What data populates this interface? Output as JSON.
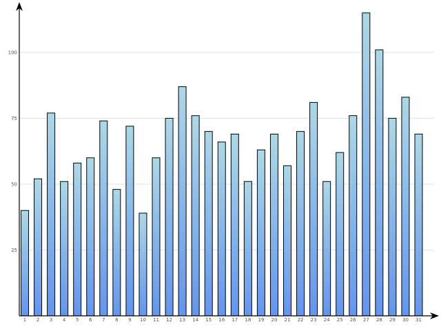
{
  "chart_data": {
    "type": "bar",
    "categories": [
      "1",
      "2",
      "3",
      "4",
      "5",
      "6",
      "7",
      "8",
      "9",
      "10",
      "11",
      "12",
      "13",
      "14",
      "15",
      "16",
      "17",
      "18",
      "19",
      "20",
      "21",
      "22",
      "23",
      "24",
      "25",
      "26",
      "27",
      "28",
      "29",
      "30",
      "31"
    ],
    "values": [
      40,
      52,
      77,
      51,
      58,
      60,
      74,
      48,
      72,
      39,
      60,
      75,
      87,
      76,
      70,
      66,
      69,
      51,
      63,
      69,
      57,
      70,
      81,
      51,
      62,
      76,
      115,
      101,
      75,
      83,
      69
    ],
    "yticks": [
      25,
      50,
      75,
      100
    ],
    "ylim": [
      0,
      120
    ],
    "grid": true,
    "legend": "none",
    "title": "",
    "xlabel": "",
    "ylabel": "",
    "colors": {
      "bar_top": "#add8e6",
      "bar_bottom": "#6495ed",
      "grid": "#e2e2e2",
      "axis": "#000000"
    }
  }
}
